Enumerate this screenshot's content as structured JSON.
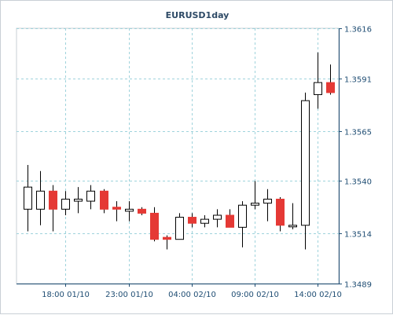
{
  "chart_data": {
    "type": "candlestick",
    "title": "EURUSD1day",
    "ylim": [
      1.3489,
      1.3616
    ],
    "y_ticks": [
      "1.3616",
      "1.3591",
      "1.3565",
      "1.3540",
      "1.3514",
      "1.3489"
    ],
    "x_ticks": [
      "18:00 01/10",
      "23:00 01/10",
      "04:00 02/10",
      "09:00 02/10",
      "14:00 02/10"
    ],
    "grid": true,
    "up_color": "#ffffff",
    "down_color": "#e53935",
    "outline_color": "#000000",
    "candles": [
      {
        "open": 1.3526,
        "high": 1.3548,
        "low": 1.3515,
        "close": 1.3537
      },
      {
        "open": 1.3526,
        "high": 1.3545,
        "low": 1.3518,
        "close": 1.3535
      },
      {
        "open": 1.3535,
        "high": 1.3538,
        "low": 1.3515,
        "close": 1.3526
      },
      {
        "open": 1.3526,
        "high": 1.3535,
        "low": 1.3523,
        "close": 1.3531
      },
      {
        "open": 1.353,
        "high": 1.3537,
        "low": 1.3524,
        "close": 1.3531
      },
      {
        "open": 1.353,
        "high": 1.3538,
        "low": 1.3526,
        "close": 1.3535
      },
      {
        "open": 1.3535,
        "high": 1.3536,
        "low": 1.3524,
        "close": 1.3526
      },
      {
        "open": 1.3527,
        "high": 1.353,
        "low": 1.352,
        "close": 1.3526
      },
      {
        "open": 1.3525,
        "high": 1.353,
        "low": 1.352,
        "close": 1.3526
      },
      {
        "open": 1.3526,
        "high": 1.3527,
        "low": 1.3523,
        "close": 1.3524
      },
      {
        "open": 1.3524,
        "high": 1.3527,
        "low": 1.351,
        "close": 1.3511
      },
      {
        "open": 1.3512,
        "high": 1.3513,
        "low": 1.3506,
        "close": 1.3511
      },
      {
        "open": 1.3511,
        "high": 1.3524,
        "low": 1.3511,
        "close": 1.3522
      },
      {
        "open": 1.3522,
        "high": 1.3524,
        "low": 1.3517,
        "close": 1.3519
      },
      {
        "open": 1.3519,
        "high": 1.3523,
        "low": 1.3517,
        "close": 1.3521
      },
      {
        "open": 1.3521,
        "high": 1.3526,
        "low": 1.3517,
        "close": 1.3523
      },
      {
        "open": 1.3523,
        "high": 1.3526,
        "low": 1.3517,
        "close": 1.3517
      },
      {
        "open": 1.3517,
        "high": 1.353,
        "low": 1.3507,
        "close": 1.3528
      },
      {
        "open": 1.3528,
        "high": 1.354,
        "low": 1.3526,
        "close": 1.3529
      },
      {
        "open": 1.3529,
        "high": 1.3536,
        "low": 1.352,
        "close": 1.3531
      },
      {
        "open": 1.3531,
        "high": 1.3532,
        "low": 1.3515,
        "close": 1.3518
      },
      {
        "open": 1.3518,
        "high": 1.3529,
        "low": 1.3516,
        "close": 1.3518
      },
      {
        "open": 1.3518,
        "high": 1.3584,
        "low": 1.3506,
        "close": 1.358
      },
      {
        "open": 1.3583,
        "high": 1.3604,
        "low": 1.3576,
        "close": 1.3589
      },
      {
        "open": 1.3589,
        "high": 1.3598,
        "low": 1.3583,
        "close": 1.3584
      }
    ]
  }
}
